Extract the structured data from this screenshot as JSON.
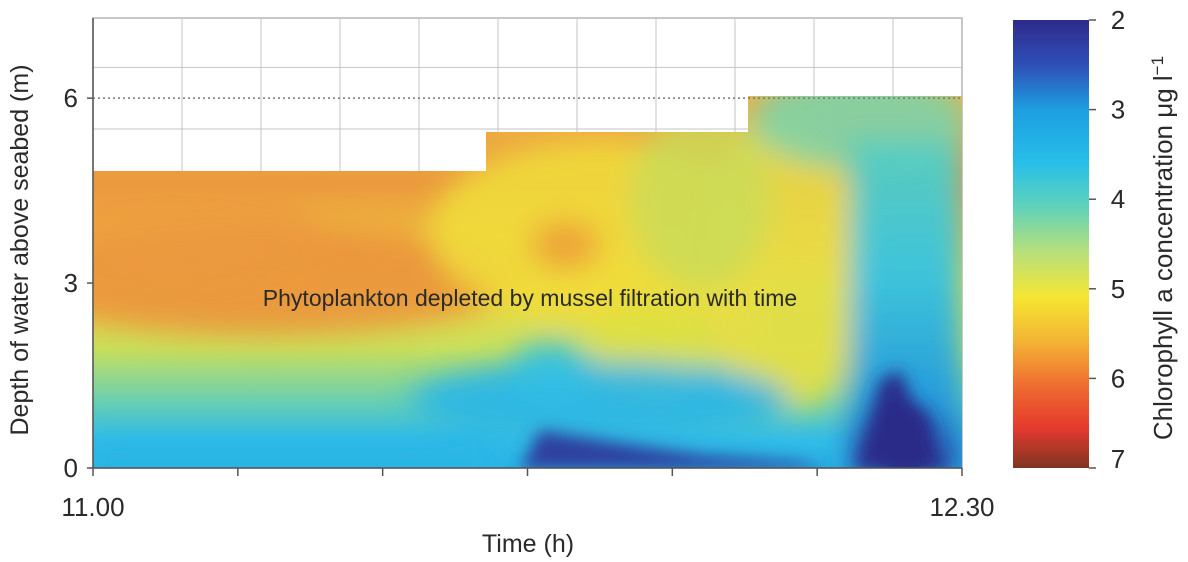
{
  "chart_data": {
    "type": "heatmap",
    "title": "",
    "xlabel": "Time (h)",
    "ylabel": "Depth of water above seabed (m)",
    "x_tick_labels": [
      "11.00",
      "12.30"
    ],
    "y_ticks": [
      0,
      3,
      6
    ],
    "ylim": [
      0,
      7.3
    ],
    "grid": true,
    "annotation": "Phytoplankton depleted by mussel filtration with time",
    "colorbar": {
      "label": "Chlorophyll a concentration μg l",
      "label_superscript": "−1",
      "ticks": [
        2,
        3,
        4,
        5,
        6,
        7
      ],
      "range": [
        2,
        7
      ],
      "placement": "right",
      "colors": [
        "#2e2c8e",
        "#1f9fe0",
        "#5ad1c0",
        "#f4e030",
        "#f09030",
        "#8a3420"
      ]
    },
    "colors": {
      "background_grid": "#bfbfbf",
      "low_concentration": "#2e2c8e",
      "high_concentration": "#e8883a"
    }
  }
}
